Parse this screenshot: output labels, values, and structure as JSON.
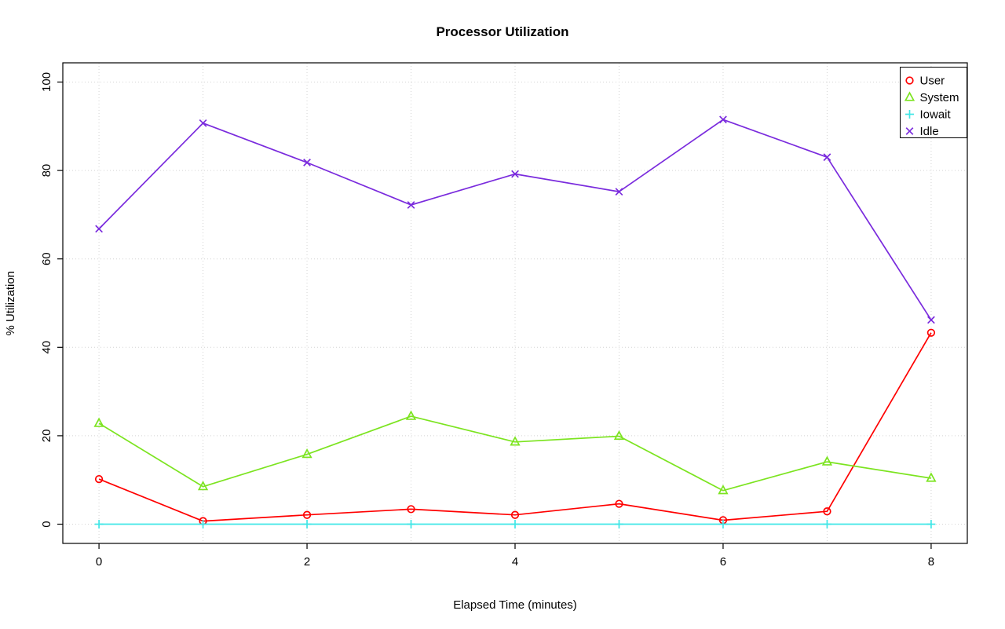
{
  "chart_data": {
    "type": "line",
    "title": "Processor Utilization",
    "xlabel": "Elapsed Time (minutes)",
    "ylabel": "% Utilization",
    "x": [
      0,
      1,
      2,
      3,
      4,
      5,
      6,
      7,
      8
    ],
    "xlim": [
      0,
      8
    ],
    "ylim": [
      0,
      100
    ],
    "x_ticks": [
      0,
      2,
      4,
      6,
      8
    ],
    "y_ticks": [
      0,
      20,
      40,
      60,
      80,
      100
    ],
    "grid_x": [
      0,
      1,
      2,
      3,
      4,
      5,
      6,
      7,
      8
    ],
    "grid_y": [
      0,
      20,
      40,
      60,
      80,
      100
    ],
    "grid": true,
    "grid_color": "#d4d4d4",
    "legend_position": "top-right",
    "series": [
      {
        "name": "User",
        "color": "#ff0000",
        "marker": "circle",
        "values": [
          10.2,
          0.7,
          2.1,
          3.4,
          2.1,
          4.6,
          0.9,
          2.9,
          43.3
        ]
      },
      {
        "name": "System",
        "color": "#7ce420",
        "marker": "triangle",
        "values": [
          22.8,
          8.5,
          15.8,
          24.4,
          18.6,
          19.9,
          7.6,
          14.1,
          10.4
        ]
      },
      {
        "name": "Iowait",
        "color": "#3fe6e6",
        "marker": "plus",
        "values": [
          0,
          0,
          0,
          0,
          0,
          0,
          0,
          0,
          0
        ]
      },
      {
        "name": "Idle",
        "color": "#7a2bdd",
        "marker": "x",
        "values": [
          66.8,
          90.7,
          81.8,
          72.2,
          79.2,
          75.2,
          91.5,
          83.0,
          46.2
        ]
      }
    ]
  }
}
